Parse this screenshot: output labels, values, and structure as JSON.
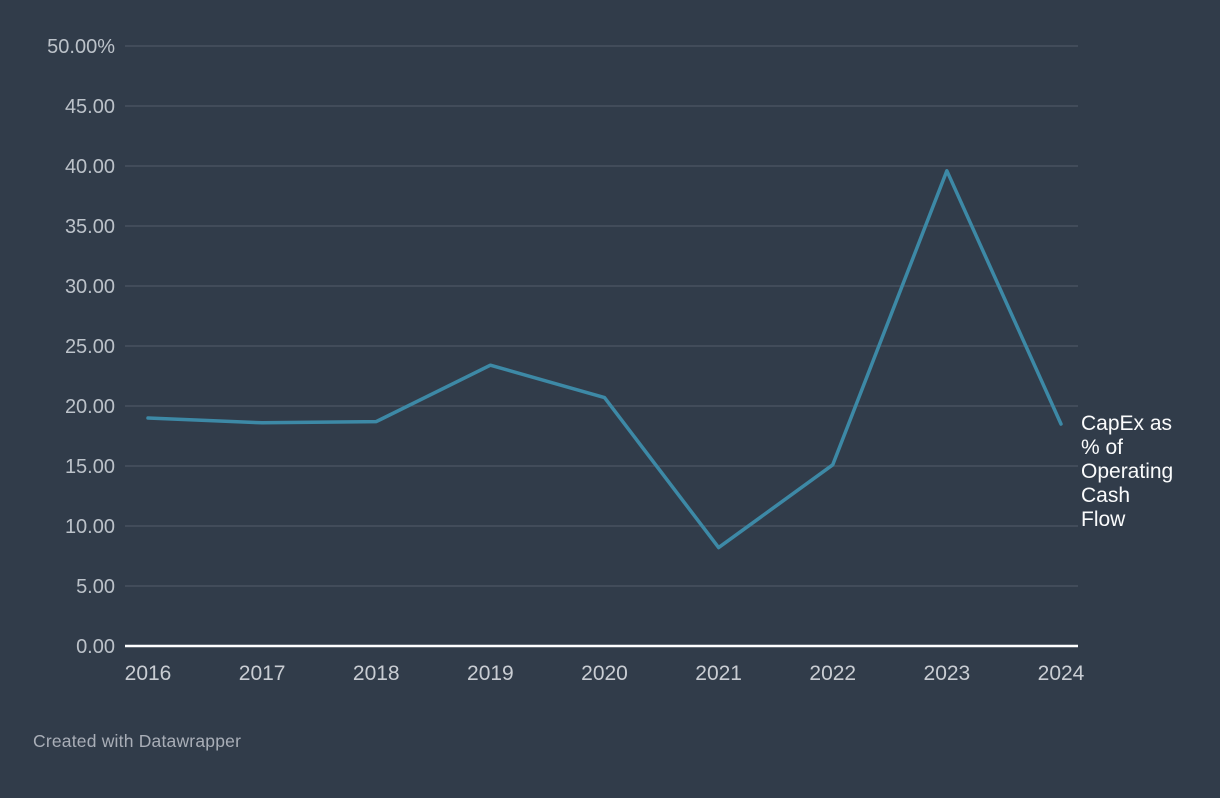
{
  "colors": {
    "background": "#313c4a",
    "gridline": "#4d5665",
    "baseline": "#ffffff",
    "line": "#3d89a6",
    "y_tick_text": "#bcc2c9",
    "x_tick_text": "#c9cdd3",
    "series_label_text": "#fafbfc",
    "attribution_text": "#a9aeb7"
  },
  "chart_data": {
    "type": "line",
    "title": "",
    "xlabel": "",
    "ylabel": "",
    "categories": [
      "2016",
      "2017",
      "2018",
      "2019",
      "2020",
      "2021",
      "2022",
      "2023",
      "2024"
    ],
    "series": [
      {
        "name": "CapEx as % of Operating Cash Flow",
        "values": [
          19.0,
          18.6,
          18.7,
          23.4,
          20.7,
          8.2,
          15.1,
          39.6,
          18.5
        ]
      }
    ],
    "series_end_label_lines": [
      "CapEx as",
      "% of",
      "Operating",
      "Cash",
      "Flow"
    ],
    "ylim": [
      0,
      50
    ],
    "y_ticks": [
      0,
      5,
      10,
      15,
      20,
      25,
      30,
      35,
      40,
      45,
      50
    ],
    "y_tick_labels": [
      "0.00",
      "5.00",
      "10.00",
      "15.00",
      "20.00",
      "25.00",
      "30.00",
      "35.00",
      "40.00",
      "45.00",
      "50.00%"
    ],
    "grid": true,
    "legend_position": "end-of-line"
  },
  "footer": {
    "attribution": "Created with Datawrapper"
  }
}
